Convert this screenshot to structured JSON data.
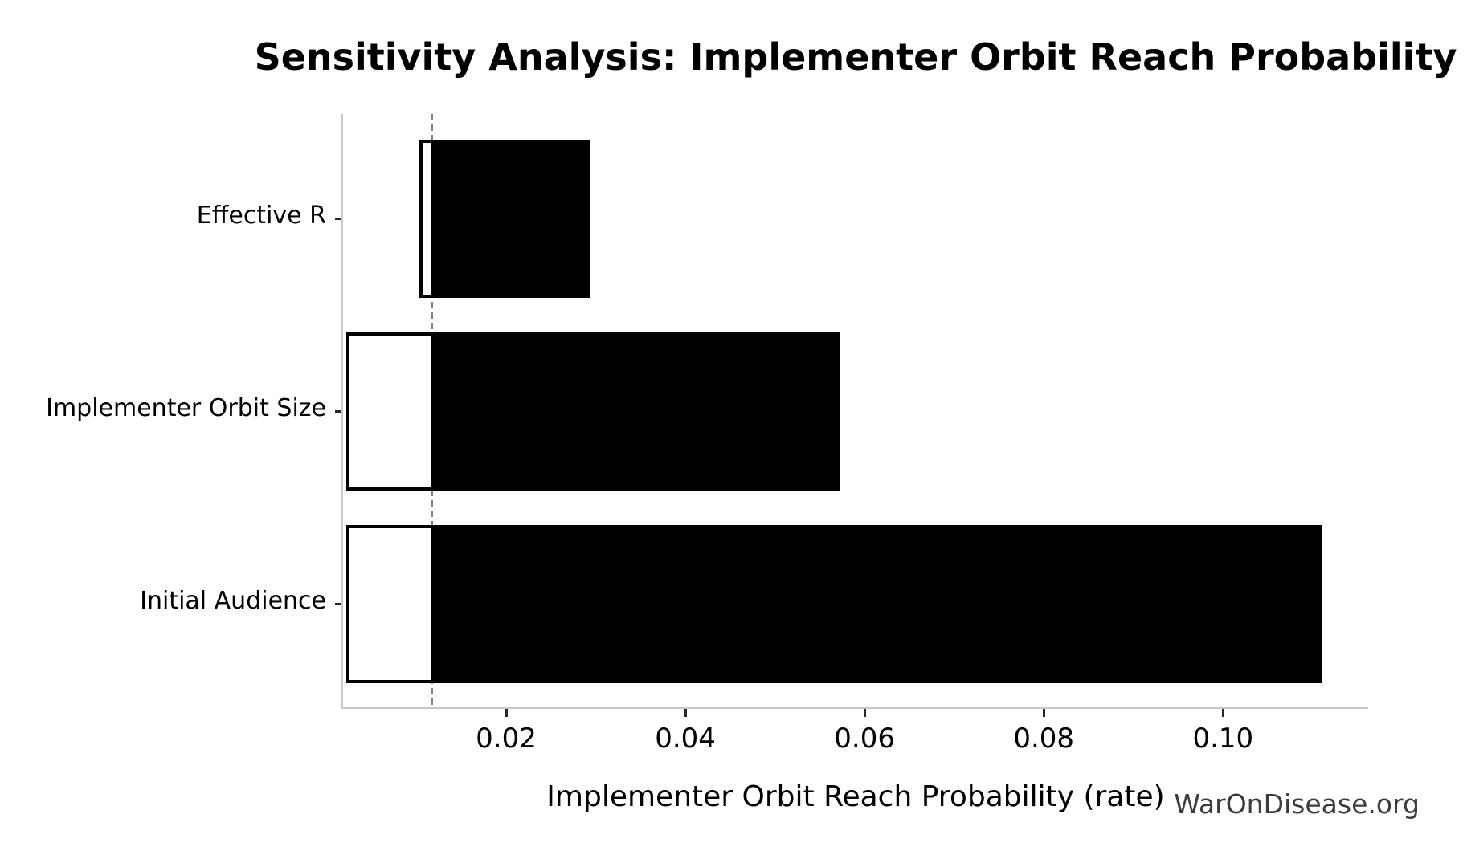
{
  "chart_data": {
    "type": "bar",
    "orientation": "horizontal",
    "subtype": "tornado-sensitivity",
    "title": "Sensitivity Analysis: Implementer Orbit Reach Probability",
    "xlabel": "Implementer Orbit Reach Probability (rate)",
    "ylabel": "",
    "categories": [
      "Effective R",
      "Implementer Orbit Size",
      "Initial Audience"
    ],
    "bars": [
      {
        "label": "Effective R",
        "low": 0.0103,
        "high": 0.0293
      },
      {
        "label": "Implementer Orbit Size",
        "low": 0.0022,
        "high": 0.0572
      },
      {
        "label": "Initial Audience",
        "low": 0.0022,
        "high": 0.111
      }
    ],
    "baseline": 0.0117,
    "xlim": [
      0.0018,
      0.1162
    ],
    "xticks": {
      "values": [
        0.02,
        0.04,
        0.06,
        0.08,
        0.1
      ],
      "labels": [
        "0.02",
        "0.04",
        "0.06",
        "0.08",
        "0.10"
      ]
    },
    "grid": false,
    "legend": null,
    "watermark": "WarOnDisease.org",
    "colors": {
      "bar_fill_high": "#000000",
      "bar_fill_low": "#ffffff",
      "bar_edge": "#000000",
      "baseline_line": "#7f7f7f",
      "spine": "#c9c9c9",
      "tick": "#262626",
      "text": "#000000",
      "watermark_text": "#3c3c3c",
      "background": "#ffffff"
    }
  }
}
